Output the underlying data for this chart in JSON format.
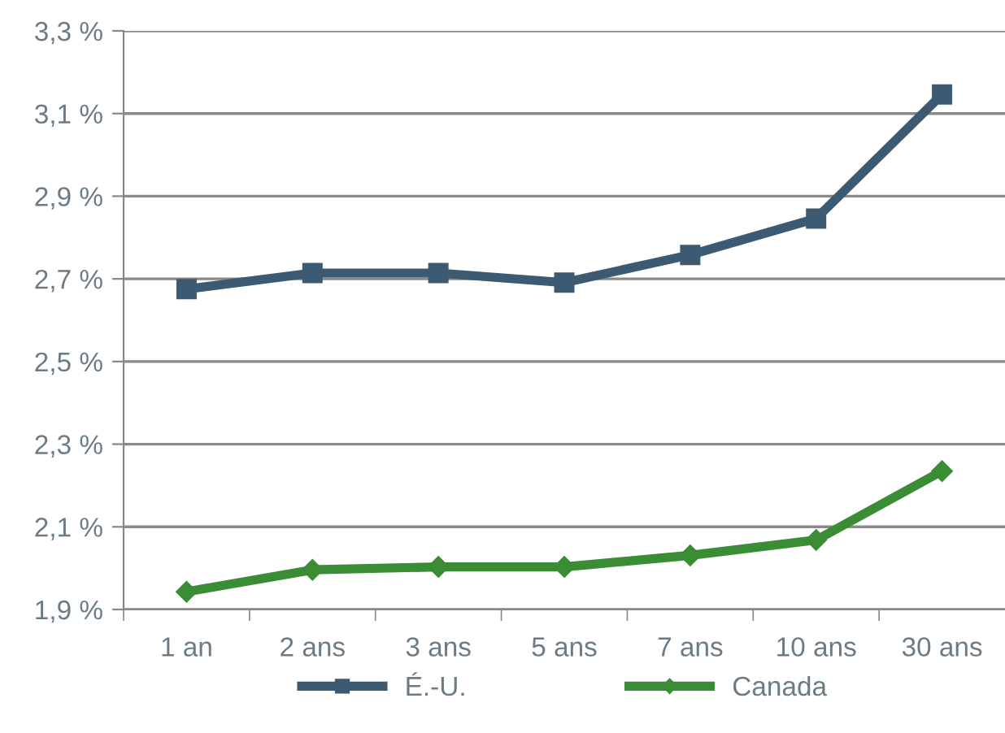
{
  "chart_data": {
    "type": "line",
    "categories": [
      "1 an",
      "2 ans",
      "3 ans",
      "5 ans",
      "7 ans",
      "10 ans",
      "30 ans"
    ],
    "series": [
      {
        "name": "É.-U.",
        "color": "#3d5a73",
        "marker": "square",
        "values": [
          2.675,
          2.714,
          2.714,
          2.691,
          2.758,
          2.846,
          3.146
        ]
      },
      {
        "name": "Canada",
        "color": "#3a8c35",
        "marker": "diamond",
        "values": [
          1.943,
          1.996,
          2.003,
          2.003,
          2.031,
          2.068,
          2.235
        ]
      }
    ],
    "ylim": [
      1.9,
      3.3
    ],
    "yticks": [
      {
        "value": 1.9,
        "label": "1,9 %"
      },
      {
        "value": 2.1,
        "label": "2,1 %"
      },
      {
        "value": 2.3,
        "label": "2,3 %"
      },
      {
        "value": 2.5,
        "label": "2,5 %"
      },
      {
        "value": 2.7,
        "label": "2,7 %"
      },
      {
        "value": 2.9,
        "label": "2,9 %"
      },
      {
        "value": 3.1,
        "label": "3,1 %"
      },
      {
        "value": 3.3,
        "label": "3,3 %"
      }
    ],
    "grid": "y",
    "legend": "bottom",
    "line_style": "solid"
  }
}
